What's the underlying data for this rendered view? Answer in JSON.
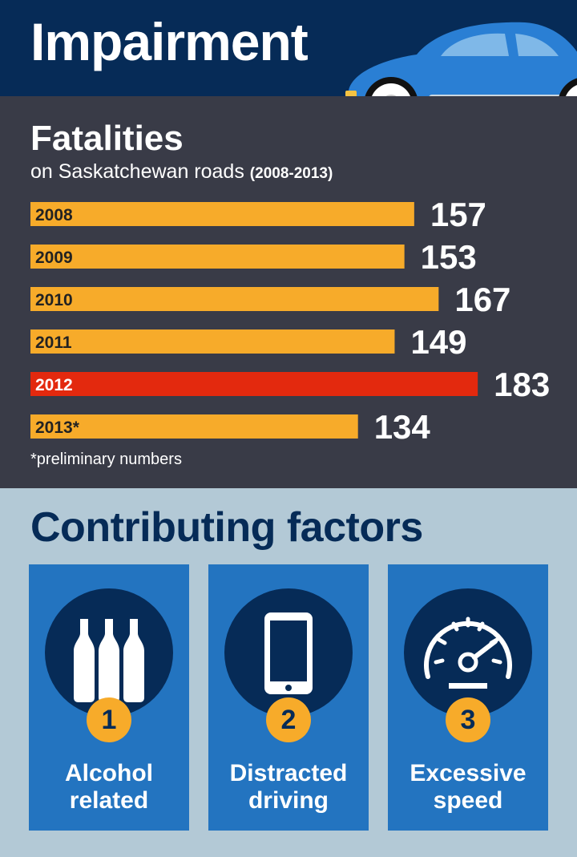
{
  "header": {
    "title": "Impairment"
  },
  "colors": {
    "navy": "#062b57",
    "bar": "#f7ab2a",
    "highlight": "#e3290e",
    "panel": "#393b47",
    "card": "#2374c0"
  },
  "chart_data": {
    "type": "bar",
    "orientation": "horizontal",
    "title": "Fatalities",
    "subtitle": "on Saskatchewan roads",
    "subtitle_range": "(2008-2013)",
    "categories": [
      "2008",
      "2009",
      "2010",
      "2011",
      "2012",
      "2013*"
    ],
    "values": [
      157,
      153,
      167,
      149,
      183,
      134
    ],
    "highlight_index": 4,
    "note": "*preliminary numbers",
    "xlim": [
      0,
      200
    ],
    "grid": false,
    "legend": "none"
  },
  "factors": {
    "title": "Contributing factors",
    "items": [
      {
        "number": "1",
        "line1": "Alcohol",
        "line2": "related",
        "icon": "bottles-icon"
      },
      {
        "number": "2",
        "line1": "Distracted",
        "line2": "driving",
        "icon": "smartphone-icon"
      },
      {
        "number": "3",
        "line1": "Excessive",
        "line2": "speed",
        "icon": "speedometer-icon"
      }
    ]
  }
}
